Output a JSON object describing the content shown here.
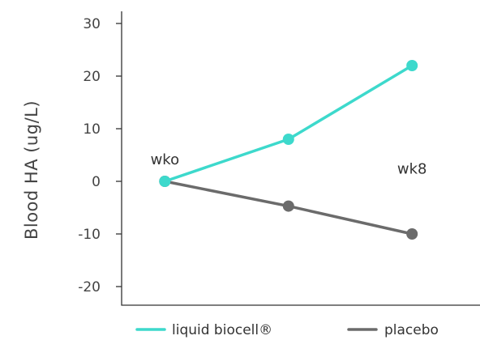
{
  "chart_data": {
    "type": "line",
    "ylabel": "Blood HA (ug/L)",
    "ylim": [
      -25,
      33
    ],
    "yticks": [
      30,
      20,
      10,
      0,
      -10,
      -20
    ],
    "x": [
      0,
      4,
      8
    ],
    "xlim": [
      -1.4,
      10.2
    ],
    "series": [
      {
        "name": "liquid biocell®",
        "color": "#3dd9cc",
        "values": [
          0,
          8,
          22
        ]
      },
      {
        "name": "placebo",
        "color": "#6b6b6b",
        "values": [
          0,
          -4.7,
          -10
        ]
      }
    ],
    "annotations": [
      {
        "text": "wko",
        "x": 0,
        "y": 3.2
      },
      {
        "text": "wk8",
        "x": 8,
        "y": 1.5
      }
    ],
    "legend_position": "bottom"
  }
}
